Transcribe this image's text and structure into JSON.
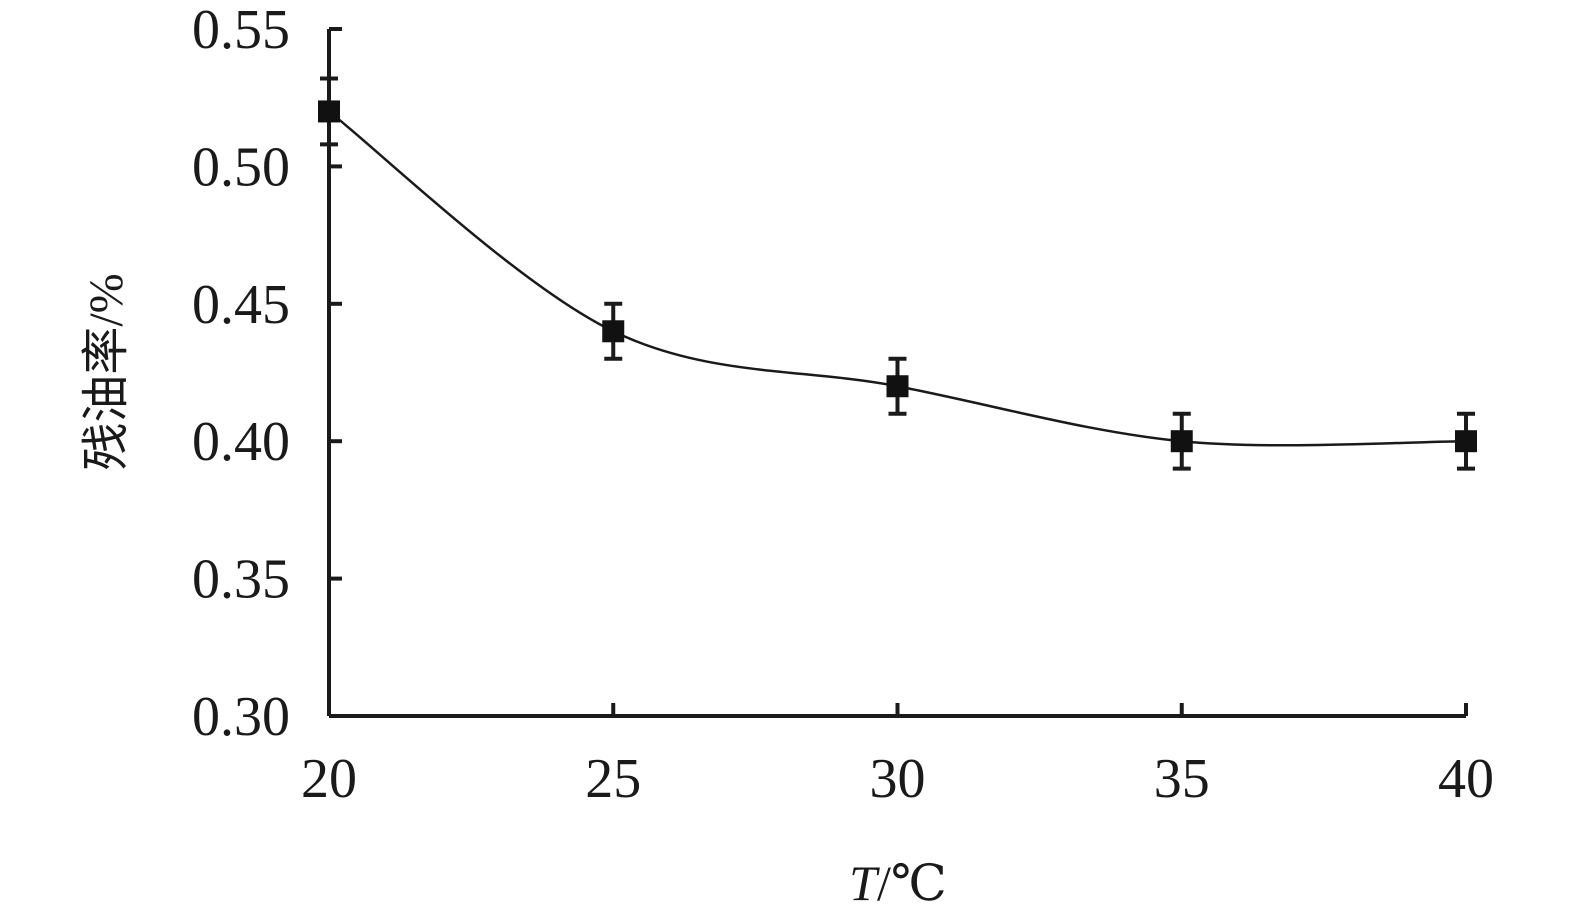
{
  "chart_data": {
    "type": "line",
    "title": "",
    "xlabel_italic": "T",
    "xlabel_unit": "/℃",
    "ylabel": "残油率/%",
    "x": [
      20,
      25,
      30,
      35,
      40
    ],
    "xlim": [
      20,
      40
    ],
    "ylim": [
      0.3,
      0.55
    ],
    "x_ticks": [
      "20",
      "25",
      "30",
      "35",
      "40"
    ],
    "y_ticks": [
      "0.30",
      "0.35",
      "0.40",
      "0.45",
      "0.50",
      "0.55"
    ],
    "series": [
      {
        "values": [
          0.52,
          0.44,
          0.42,
          0.4,
          0.4
        ],
        "error": [
          0.012,
          0.01,
          0.01,
          0.01,
          0.01
        ],
        "marker": "square",
        "smooth": true
      }
    ],
    "grid": false,
    "legend": "none"
  }
}
